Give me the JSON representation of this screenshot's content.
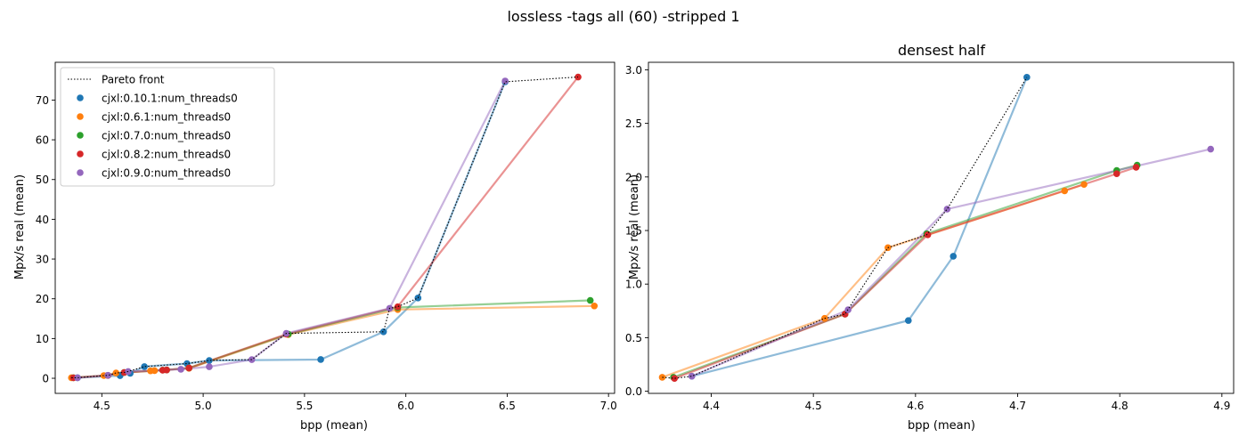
{
  "figure": {
    "suptitle": "lossless -tags all (60) -stripped 1"
  },
  "colors": {
    "cjxl:0.10.1:num_threads0": "#1f77b4",
    "cjxl:0.6.1:num_threads0": "#ff7f0e",
    "cjxl:0.7.0:num_threads0": "#2ca02c",
    "cjxl:0.8.2:num_threads0": "#d62728",
    "cjxl:0.9.0:num_threads0": "#9467bd"
  },
  "chart_data": [
    {
      "type": "scatter",
      "title": "",
      "xlabel": "bpp (mean)",
      "ylabel": "Mpx/s real (mean)",
      "xlim": [
        4.27,
        7.03
      ],
      "ylim": [
        -3.8,
        79.5
      ],
      "xticks": [
        "4.5",
        "5.0",
        "5.5",
        "6.0",
        "6.5",
        "7.0"
      ],
      "yticks": [
        "0",
        "10",
        "20",
        "30",
        "40",
        "50",
        "60",
        "70"
      ],
      "legend": {
        "position": "top-left",
        "entries": [
          "Pareto front",
          "cjxl:0.10.1:num_threads0",
          "cjxl:0.6.1:num_threads0",
          "cjxl:0.7.0:num_threads0",
          "cjxl:0.8.2:num_threads0",
          "cjxl:0.9.0:num_threads0"
        ]
      },
      "pareto": {
        "name": "Pareto front",
        "x": [
          4.35,
          4.36,
          4.38,
          4.51,
          4.53,
          4.57,
          4.61,
          4.63,
          4.71,
          4.92,
          5.03,
          5.24,
          5.41,
          5.89,
          5.92,
          5.96,
          6.06,
          6.49,
          6.85
        ],
        "y": [
          0.13,
          0.12,
          0.14,
          0.68,
          0.72,
          1.34,
          1.46,
          1.7,
          2.93,
          3.7,
          4.48,
          4.7,
          11.3,
          11.7,
          17.6,
          18.0,
          20.2,
          74.6,
          75.8
        ]
      },
      "series": [
        {
          "name": "cjxl:0.10.1:num_threads0",
          "x": [
            4.38,
            4.59,
            4.64,
            4.71,
            4.92,
            5.03,
            5.58,
            5.89,
            6.06,
            6.49
          ],
          "y": [
            0.14,
            0.66,
            1.26,
            2.93,
            3.7,
            4.48,
            4.72,
            11.7,
            20.2,
            74.6
          ]
        },
        {
          "name": "cjxl:0.6.1:num_threads0",
          "x": [
            4.35,
            4.51,
            4.57,
            4.74,
            4.76,
            4.93,
            5.42,
            5.96,
            6.93
          ],
          "y": [
            0.13,
            0.68,
            1.34,
            1.87,
            1.93,
            2.5,
            11.0,
            17.3,
            18.2
          ]
        },
        {
          "name": "cjxl:0.7.0:num_threads0",
          "x": [
            4.36,
            4.53,
            4.61,
            4.8,
            4.82,
            4.93,
            5.42,
            5.96,
            6.91
          ],
          "y": [
            0.13,
            0.72,
            1.46,
            2.05,
            2.1,
            2.6,
            11.1,
            17.8,
            19.6
          ]
        },
        {
          "name": "cjxl:0.8.2:num_threads0",
          "x": [
            4.36,
            4.53,
            4.61,
            4.8,
            4.82,
            4.93,
            5.41,
            5.96,
            6.85
          ],
          "y": [
            0.12,
            0.72,
            1.46,
            2.03,
            2.09,
            2.6,
            11.1,
            18.0,
            75.8
          ]
        },
        {
          "name": "cjxl:0.9.0:num_threads0",
          "x": [
            4.38,
            4.53,
            4.63,
            4.89,
            5.03,
            5.24,
            5.41,
            5.92,
            6.49
          ],
          "y": [
            0.14,
            0.76,
            1.7,
            2.26,
            2.9,
            4.7,
            11.3,
            17.6,
            74.8
          ]
        }
      ]
    },
    {
      "type": "scatter",
      "title": "densest half",
      "xlabel": "bpp (mean)",
      "ylabel": "Mpx/s real (mean)",
      "xlim": [
        4.3385,
        4.9115
      ],
      "ylim": [
        -0.02,
        3.07
      ],
      "xticks": [
        "4.4",
        "4.5",
        "4.6",
        "4.7",
        "4.8",
        "4.9"
      ],
      "yticks": [
        "0.0",
        "0.5",
        "1.0",
        "1.5",
        "2.0",
        "2.5",
        "3.0"
      ],
      "pareto": {
        "name": "Pareto front",
        "x": [
          4.352,
          4.364,
          4.381,
          4.511,
          4.531,
          4.573,
          4.611,
          4.631,
          4.709
        ],
        "y": [
          0.13,
          0.12,
          0.14,
          0.68,
          0.72,
          1.34,
          1.46,
          1.7,
          2.93
        ]
      },
      "series": [
        {
          "name": "cjxl:0.10.1:num_threads0",
          "x": [
            4.381,
            4.593,
            4.637,
            4.709
          ],
          "y": [
            0.14,
            0.66,
            1.26,
            2.93
          ]
        },
        {
          "name": "cjxl:0.6.1:num_threads0",
          "x": [
            4.352,
            4.511,
            4.573,
            4.746,
            4.765
          ],
          "y": [
            0.13,
            0.68,
            1.34,
            1.87,
            1.93
          ]
        },
        {
          "name": "cjxl:0.7.0:num_threads0",
          "x": [
            4.363,
            4.531,
            4.611,
            4.797,
            4.817
          ],
          "y": [
            0.13,
            0.72,
            1.47,
            2.06,
            2.11
          ]
        },
        {
          "name": "cjxl:0.8.2:num_threads0",
          "x": [
            4.364,
            4.531,
            4.612,
            4.797,
            4.816
          ],
          "y": [
            0.12,
            0.72,
            1.46,
            2.03,
            2.09
          ]
        },
        {
          "name": "cjxl:0.9.0:num_threads0",
          "x": [
            4.381,
            4.534,
            4.631,
            4.889
          ],
          "y": [
            0.14,
            0.76,
            1.7,
            2.26
          ]
        }
      ]
    }
  ]
}
